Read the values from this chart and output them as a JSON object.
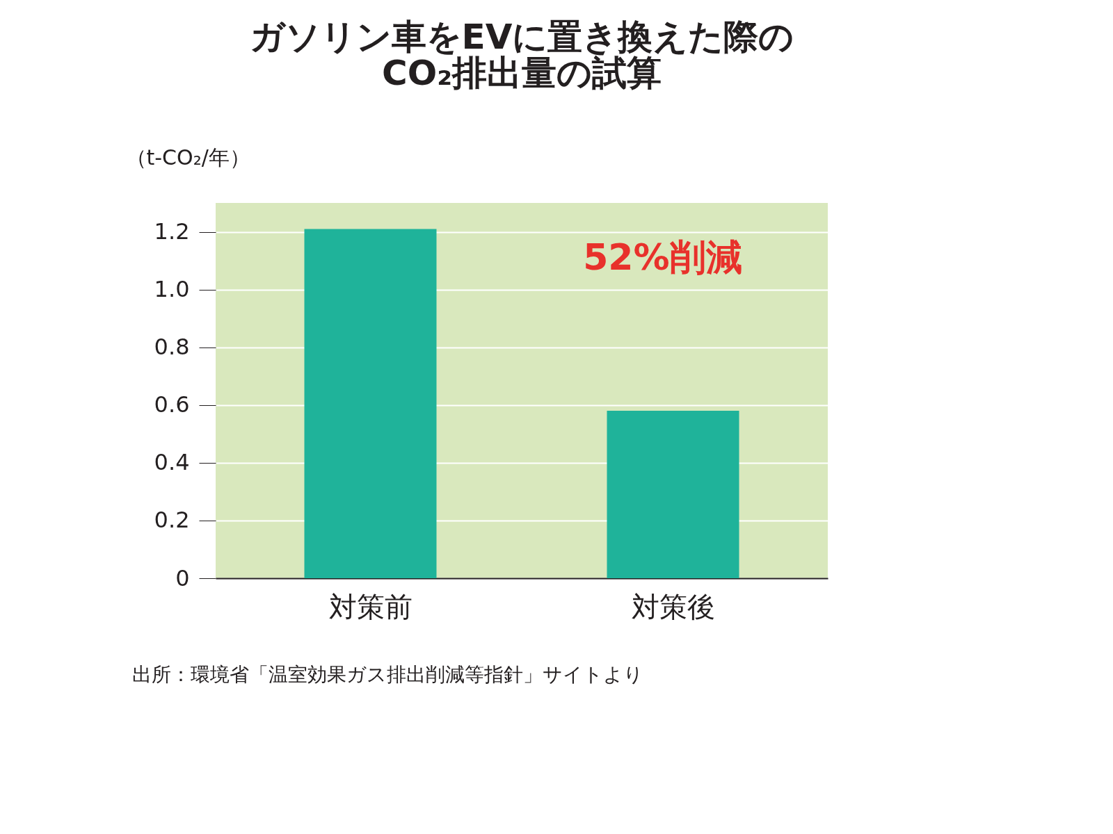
{
  "chart_data": {
    "type": "bar",
    "title": [
      "ガソリン車をEVに置き換えた際の",
      "CO₂排出量の試算"
    ],
    "ylabel": "（t-CO₂/年）",
    "categories": [
      "対策前",
      "対策後"
    ],
    "values": [
      1.21,
      0.58
    ],
    "color": "#1fb39a",
    "ylim": [
      0,
      1.3
    ],
    "yticks": [
      0,
      0.2,
      0.4,
      0.6,
      0.8,
      {
        "value": 1,
        "label": "1.0"
      },
      1.2
    ],
    "grid": "y",
    "annotations": [
      "52%削減",
      "出所：環境省「温室効果ガス排出削減等指針」サイトより"
    ]
  }
}
